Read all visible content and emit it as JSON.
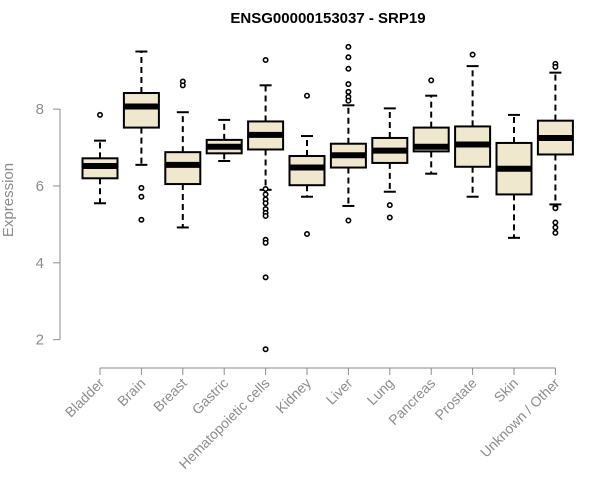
{
  "chart_data": {
    "type": "boxplot",
    "title": "ENSG00000153037 - SRP19",
    "ylabel": "Expression",
    "xlabel": "",
    "ylim": [
      1.6,
      9.8
    ],
    "yticks": [
      2,
      4,
      6,
      8
    ],
    "box_fill": "#efe8cf",
    "box_stroke": "#000000",
    "categories": [
      "Bladder",
      "Brain",
      "Breast",
      "Gastric",
      "Hematopoietic cells",
      "Kidney",
      "Liver",
      "Lung",
      "Pancreas",
      "Prostate",
      "Skin",
      "Unknown / Other"
    ],
    "boxes": [
      {
        "whisker_low": 5.55,
        "q1": 6.2,
        "median": 6.52,
        "q3": 6.72,
        "whisker_high": 7.18,
        "outliers": [
          7.85
        ]
      },
      {
        "whisker_low": 6.55,
        "q1": 7.52,
        "median": 8.07,
        "q3": 8.42,
        "whisker_high": 9.5,
        "outliers": [
          5.95,
          5.72,
          5.12
        ]
      },
      {
        "whisker_low": 4.92,
        "q1": 6.05,
        "median": 6.55,
        "q3": 6.88,
        "whisker_high": 7.92,
        "outliers": [
          8.72,
          8.62
        ]
      },
      {
        "whisker_low": 6.65,
        "q1": 6.85,
        "median": 7.02,
        "q3": 7.2,
        "whisker_high": 7.72,
        "outliers": []
      },
      {
        "whisker_low": 5.9,
        "q1": 6.95,
        "median": 7.33,
        "q3": 7.68,
        "whisker_high": 8.62,
        "outliers": [
          9.28,
          5.92,
          5.78,
          5.65,
          5.55,
          5.4,
          5.3,
          5.22,
          4.6,
          4.52,
          3.62,
          1.75
        ]
      },
      {
        "whisker_low": 5.72,
        "q1": 6.02,
        "median": 6.48,
        "q3": 6.78,
        "whisker_high": 7.3,
        "outliers": [
          8.35,
          4.75
        ]
      },
      {
        "whisker_low": 5.48,
        "q1": 6.48,
        "median": 6.8,
        "q3": 7.1,
        "whisker_high": 8.1,
        "outliers": [
          9.62,
          9.35,
          9.05,
          8.65,
          8.45,
          8.32,
          8.22,
          5.1
        ]
      },
      {
        "whisker_low": 5.85,
        "q1": 6.6,
        "median": 6.92,
        "q3": 7.25,
        "whisker_high": 8.02,
        "outliers": [
          5.5,
          5.18
        ]
      },
      {
        "whisker_low": 6.32,
        "q1": 6.9,
        "median": 7.02,
        "q3": 7.52,
        "whisker_high": 8.35,
        "outliers": [
          8.75
        ]
      },
      {
        "whisker_low": 5.72,
        "q1": 6.5,
        "median": 7.08,
        "q3": 7.55,
        "whisker_high": 9.12,
        "outliers": [
          9.42
        ]
      },
      {
        "whisker_low": 4.65,
        "q1": 5.78,
        "median": 6.45,
        "q3": 7.12,
        "whisker_high": 7.85,
        "outliers": []
      },
      {
        "whisker_low": 5.52,
        "q1": 6.82,
        "median": 7.25,
        "q3": 7.7,
        "whisker_high": 8.95,
        "outliers": [
          9.18,
          9.1,
          5.45,
          5.42,
          5.05,
          4.92,
          4.78
        ]
      }
    ]
  }
}
